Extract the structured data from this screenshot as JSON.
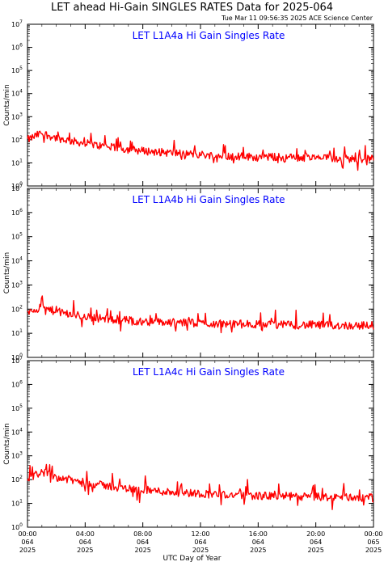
{
  "title": "LET ahead Hi-Gain SINGLES RATES Data for 2025-064",
  "timestamp": "Tue Mar 11 09:56:35 2025 ACE Science Center",
  "xlabel": "UTC Day of Year",
  "colors": {
    "series": "#ff0000",
    "panel_title": "#0000ff",
    "axes": "#000000"
  },
  "chart_data": [
    {
      "type": "line",
      "title": "LET L1A4a Hi Gain Singles Rate",
      "ylabel": "Counts/min",
      "yscale": "log",
      "ylim": [
        1,
        10000000
      ],
      "xlim": [
        0,
        24
      ],
      "series": [
        {
          "x": [
            0,
            0.5,
            1,
            1.5,
            2,
            3,
            4,
            5,
            6,
            7,
            8,
            9,
            10,
            11,
            12,
            13,
            14,
            15,
            16,
            17,
            18,
            19,
            20,
            21,
            22,
            23,
            24
          ],
          "values": [
            100,
            140,
            200,
            150,
            120,
            90,
            70,
            55,
            45,
            38,
            33,
            30,
            27,
            25,
            23,
            21,
            20,
            19,
            18,
            18,
            17,
            17,
            16,
            16,
            15,
            15,
            15
          ]
        }
      ]
    },
    {
      "type": "line",
      "title": "LET L1A4b Hi Gain Singles Rate",
      "ylabel": "Counts/min",
      "yscale": "log",
      "ylim": [
        1,
        10000000
      ],
      "xlim": [
        0,
        24
      ],
      "series": [
        {
          "x": [
            0,
            0.5,
            1,
            1.5,
            2,
            3,
            4,
            5,
            6,
            7,
            8,
            9,
            10,
            11,
            12,
            13,
            14,
            15,
            16,
            17,
            18,
            19,
            20,
            21,
            22,
            23,
            24
          ],
          "values": [
            80,
            100,
            110,
            95,
            80,
            60,
            50,
            42,
            37,
            34,
            31,
            29,
            28,
            27,
            26,
            25,
            24,
            24,
            23,
            23,
            22,
            22,
            22,
            21,
            21,
            21,
            21
          ]
        }
      ]
    },
    {
      "type": "line",
      "title": "LET L1A4c Hi Gain Singles Rate",
      "ylabel": "Counts/min",
      "yscale": "log",
      "ylim": [
        1,
        10000000
      ],
      "xlim": [
        0,
        24
      ],
      "series": [
        {
          "x": [
            0,
            0.5,
            1,
            1.5,
            2,
            3,
            4,
            5,
            6,
            7,
            8,
            9,
            10,
            11,
            12,
            13,
            14,
            15,
            16,
            17,
            18,
            19,
            20,
            21,
            22,
            23,
            24
          ],
          "values": [
            100,
            150,
            220,
            160,
            130,
            95,
            75,
            60,
            50,
            42,
            37,
            33,
            30,
            28,
            26,
            24,
            23,
            22,
            21,
            20,
            20,
            19,
            19,
            18,
            18,
            18,
            17
          ]
        }
      ]
    }
  ],
  "x_ticks": [
    {
      "x": 0,
      "lines": [
        "00:00",
        "064",
        "2025"
      ]
    },
    {
      "x": 4,
      "lines": [
        "04:00",
        "064",
        "2025"
      ]
    },
    {
      "x": 8,
      "lines": [
        "08:00",
        "064",
        "2025"
      ]
    },
    {
      "x": 12,
      "lines": [
        "12:00",
        "064",
        "2025"
      ]
    },
    {
      "x": 16,
      "lines": [
        "16:00",
        "064",
        "2025"
      ]
    },
    {
      "x": 20,
      "lines": [
        "20:00",
        "064",
        "2025"
      ]
    },
    {
      "x": 24,
      "lines": [
        "00:00",
        "065",
        "2025"
      ]
    }
  ],
  "y_tick_labels": [
    {
      "base": "10",
      "exp": "0"
    },
    {
      "base": "10",
      "exp": "1"
    },
    {
      "base": "10",
      "exp": "2"
    },
    {
      "base": "10",
      "exp": "3"
    },
    {
      "base": "10",
      "exp": "4"
    },
    {
      "base": "10",
      "exp": "5"
    },
    {
      "base": "10",
      "exp": "6"
    },
    {
      "base": "10",
      "exp": "7"
    }
  ]
}
